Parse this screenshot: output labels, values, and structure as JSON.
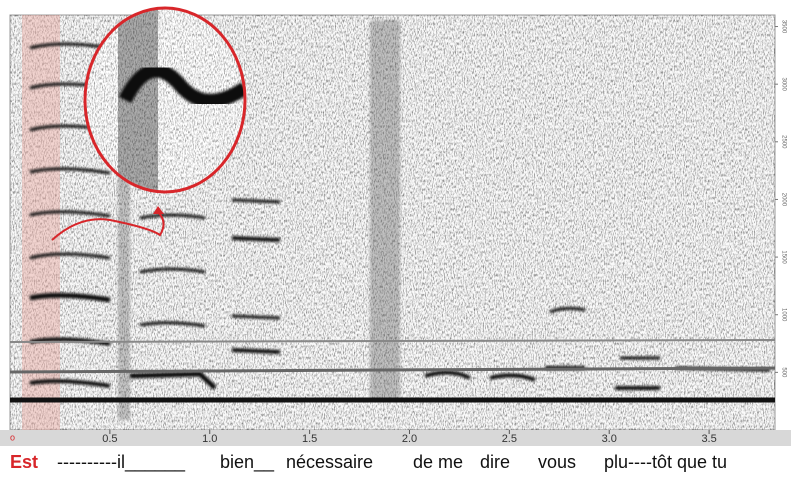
{
  "chart_data": {
    "type": "spectrogram",
    "xlim": [
      0,
      3.83
    ],
    "xticks": [
      {
        "value": 0.5,
        "label": "0.5"
      },
      {
        "value": 1.0,
        "label": "1.0"
      },
      {
        "value": 1.5,
        "label": "1.5"
      },
      {
        "value": 2.0,
        "label": "2.0"
      },
      {
        "value": 2.5,
        "label": "2.5"
      },
      {
        "value": 3.0,
        "label": "3.0"
      },
      {
        "value": 3.5,
        "label": "3.5"
      }
    ],
    "ylim": [
      0,
      3600
    ],
    "yticks": [
      500,
      1000,
      1500,
      2000,
      2500,
      3000,
      3500
    ],
    "transcript": [
      "Est",
      "----------il______",
      "bien__",
      "nécessaire",
      "de me",
      "dire",
      "vous",
      "plu----tôt que tu"
    ]
  }
}
